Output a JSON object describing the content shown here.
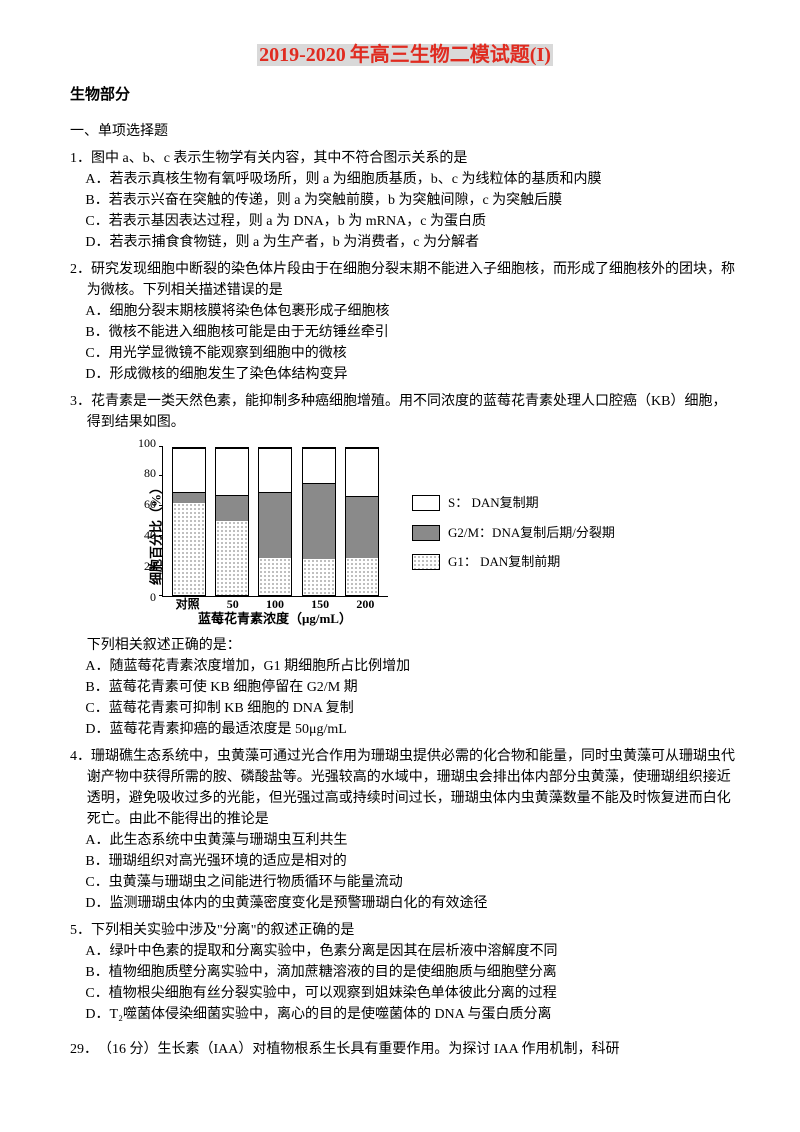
{
  "title": {
    "year": "2019-2020",
    "rest": "年高三生物二模试题(I)"
  },
  "section_title": "生物部分",
  "q_type": "一、单项选择题",
  "q1": {
    "text": "1．图中 a、b、c 表示生物学有关内容，其中不符合图示关系的是",
    "A": "A．若表示真核生物有氧呼吸场所，则 a 为细胞质基质，b、c 为线粒体的基质和内膜",
    "B": "B．若表示兴奋在突触的传递，则 a 为突触前膜，b 为突触间隙，c 为突触后膜",
    "C": "C．若表示基因表达过程，则 a 为 DNA，b 为 mRNA，c 为蛋白质",
    "D": "D．若表示捕食食物链，则 a 为生产者，b 为消费者，c 为分解者"
  },
  "q2": {
    "text": "2．研究发现细胞中断裂的染色体片段由于在细胞分裂末期不能进入子细胞核，而形成了细胞核外的团块，称为微核。下列相关描述错误的是",
    "A": "A．细胞分裂末期核膜将染色体包裹形成子细胞核",
    "B": "B．微核不能进入细胞核可能是由于无纺锤丝牵引",
    "C": "C．用光学显微镜不能观察到细胞中的微核",
    "D": "D．形成微核的细胞发生了染色体结构变异"
  },
  "q3": {
    "text": "3．花青素是一类天然色素，能抑制多种癌细胞增殖。用不同浓度的蓝莓花青素处理人口腔癌（KB）细胞，得到结果如图。",
    "chart": {
      "type": "bar",
      "y_label": "细胞百分比（%）",
      "x_title": "蓝莓花青素浓度（μg/mL）",
      "y_ticks": [
        0,
        20,
        40,
        60,
        80,
        100
      ],
      "categories": [
        "对照",
        "50",
        "100",
        "150",
        "200"
      ],
      "series": [
        {
          "name": "G1",
          "label": "G1：  DAN复制前期",
          "color_key": "g1"
        },
        {
          "name": "G2/M",
          "label": "G2/M：DNA复制后期/分裂期",
          "color_key": "g2"
        },
        {
          "name": "S",
          "label": "S：   DAN复制期",
          "color_key": "s"
        }
      ],
      "values": {
        "G1": [
          62,
          50,
          25,
          24,
          25
        ],
        "G2M": [
          8,
          18,
          45,
          52,
          42
        ],
        "S": [
          30,
          32,
          30,
          24,
          33
        ]
      },
      "colors": {
        "g1_dot": "#000000",
        "g2": "#8a8a8a",
        "s": "#ffffff",
        "border": "#000000"
      },
      "fontsize": {
        "axis_label": 13,
        "tick": 12
      }
    },
    "after": "下列相关叙述正确的是：",
    "A": "A．随蓝莓花青素浓度增加，G1 期细胞所占比例增加",
    "B": "B．蓝莓花青素可使 KB 细胞停留在 G2/M 期",
    "C": "C．蓝莓花青素可抑制 KB 细胞的 DNA 复制",
    "D": "D．蓝莓花青素抑癌的最适浓度是 50μg/mL"
  },
  "q4": {
    "text": "4．珊瑚礁生态系统中，虫黄藻可通过光合作用为珊瑚虫提供必需的化合物和能量，同时虫黄藻可从珊瑚虫代谢产物中获得所需的胺、磷酸盐等。光强较高的水域中，珊瑚虫会排出体内部分虫黄藻，使珊瑚组织接近透明，避免吸收过多的光能，但光强过高或持续时间过长，珊瑚虫体内虫黄藻数量不能及时恢复进而白化死亡。由此不能得出的推论是",
    "A": "A．此生态系统中虫黄藻与珊瑚虫互利共生",
    "B": "B．珊瑚组织对高光强环境的适应是相对的",
    "C": "C．虫黄藻与珊瑚虫之间能进行物质循环与能量流动",
    "D": "D．监测珊瑚虫体内的虫黄藻密度变化是预警珊瑚白化的有效途径"
  },
  "q5": {
    "text": "5．下列相关实验中涉及\"分离\"的叙述正确的是",
    "A": "A．绿叶中色素的提取和分离实验中，色素分离是因其在层析液中溶解度不同",
    "B": "B．植物细胞质壁分离实验中，滴加蔗糖溶液的目的是使细胞质与细胞壁分离",
    "C": "C．植物根尖细胞有丝分裂实验中，可以观察到姐妹染色单体彼此分离的过程",
    "D": "D．T₂噬菌体侵染细菌实验中，离心的目的是使噬菌体的 DNA 与蛋白质分离"
  },
  "q29": "29．　（16 分）生长素（IAA）对植物根系生长具有重要作用。为探讨 IAA 作用机制，科研"
}
